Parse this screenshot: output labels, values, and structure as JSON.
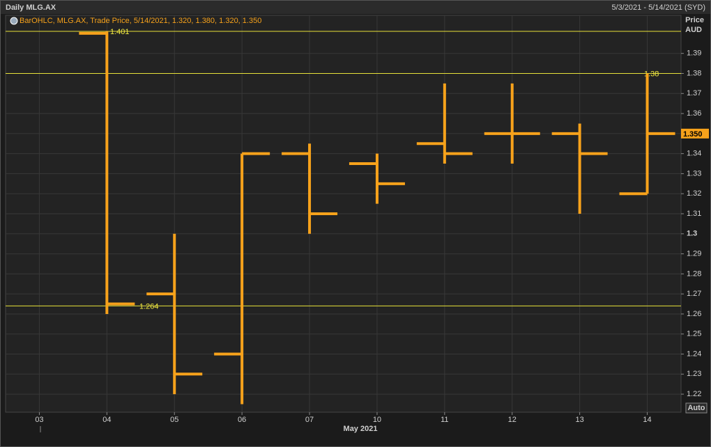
{
  "chart_data": {
    "type": "ohlc",
    "title": "Daily MLG.AX",
    "date_range": "5/3/2021 - 5/14/2021 (SYD)",
    "legend": "BarOHLC, MLG.AX, Trade Price, 5/14/2021, 1.320, 1.380, 1.320, 1.350",
    "y_label": "Price",
    "y_unit": "AUD",
    "x_label": "May 2021",
    "button": "Auto",
    "color": "#f7a21b",
    "categories": [
      "03",
      "04",
      "05",
      "06",
      "07",
      "10",
      "11",
      "12",
      "13",
      "14"
    ],
    "open": [
      null,
      1.4,
      1.27,
      1.24,
      1.34,
      1.335,
      1.345,
      1.35,
      1.35,
      1.32
    ],
    "high": [
      null,
      1.401,
      1.3,
      1.34,
      1.345,
      1.34,
      1.375,
      1.375,
      1.355,
      1.38
    ],
    "low": [
      null,
      1.26,
      1.22,
      1.215,
      1.3,
      1.315,
      1.335,
      1.335,
      1.31,
      1.32
    ],
    "close": [
      null,
      1.265,
      1.23,
      1.34,
      1.31,
      1.325,
      1.34,
      1.35,
      1.34,
      1.35
    ],
    "hlines": [
      {
        "value": 1.401,
        "label": "1.401"
      },
      {
        "value": 1.38,
        "label": "1.38"
      },
      {
        "value": 1.264,
        "label": "1.264"
      }
    ],
    "price_marker": {
      "value": 1.35,
      "label": "1.350"
    },
    "ylim": [
      1.211,
      1.409
    ],
    "yticks": [
      1.22,
      1.23,
      1.24,
      1.25,
      1.26,
      1.27,
      1.28,
      1.29,
      1.3,
      1.31,
      1.32,
      1.33,
      1.34,
      1.35,
      1.36,
      1.37,
      1.38,
      1.39
    ],
    "grid": true
  }
}
